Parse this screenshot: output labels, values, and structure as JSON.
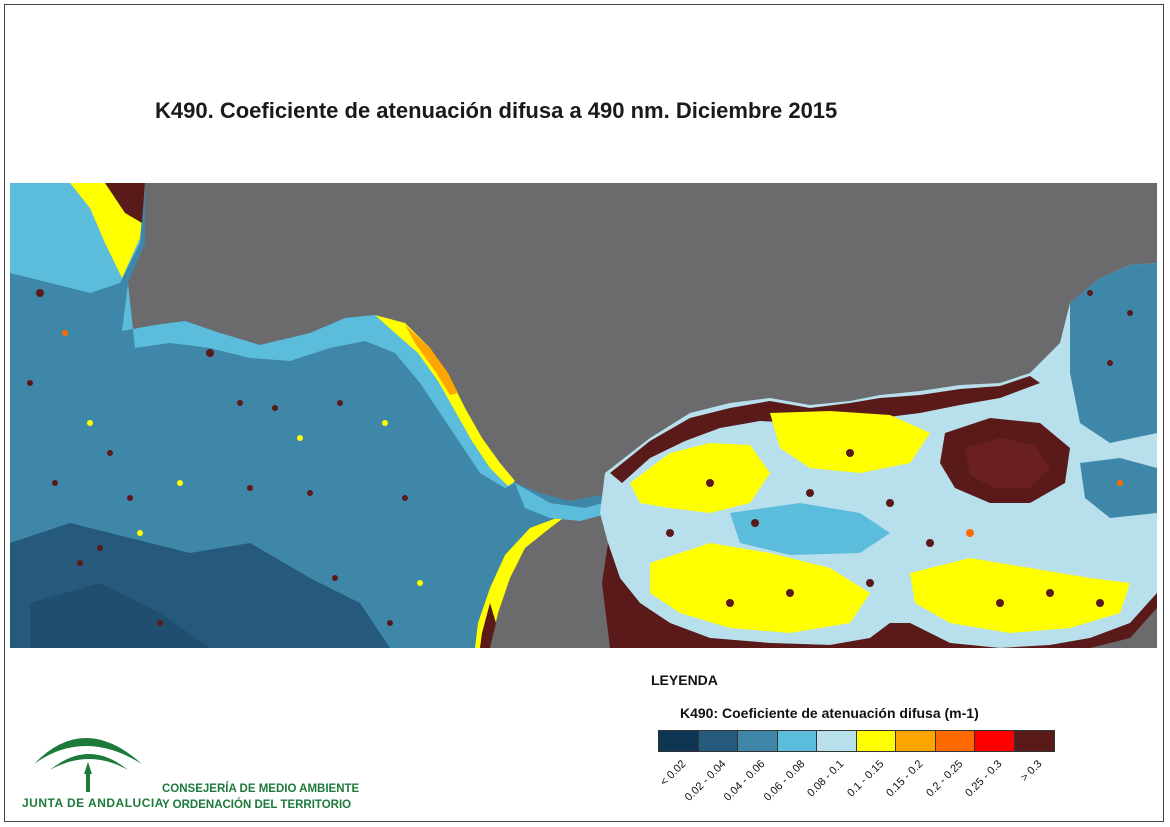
{
  "title": "K490. Coeficiente de atenuación difusa a 490 nm. Diciembre 2015",
  "legend": {
    "heading": "LEYENDA",
    "subtitle": "K490: Coeficiente de atenuación difusa (m-1)",
    "classes": [
      {
        "label": "< 0.02",
        "color": "#0e3552"
      },
      {
        "label": "0.02 - 0.04",
        "color": "#255a7c"
      },
      {
        "label": "0.04 - 0.06",
        "color": "#3f87a8"
      },
      {
        "label": "0.06 - 0.08",
        "color": "#5bbcdc"
      },
      {
        "label": "0.08 - 0.1",
        "color": "#b8e0ec"
      },
      {
        "label": "0.1 - 0.15",
        "color": "#ffff00"
      },
      {
        "label": "0.15 - 0.2",
        "color": "#ffa500"
      },
      {
        "label": "0.2 - 0.25",
        "color": "#ff6a00"
      },
      {
        "label": "0.25 - 0.3",
        "color": "#ff0000"
      },
      {
        "label": "> 0.3",
        "color": "#5a1a1a"
      }
    ]
  },
  "branding": {
    "logo_text": "JUNTA DE ANDALUCIA",
    "department_line1": "CONSEJERÍA DE MEDIO AMBIENTE",
    "department_line2": "Y ORDENACIÓN DEL TERRITORIO"
  },
  "map": {
    "land_color": "#6b6b6e",
    "sea_color": "#3f87a8"
  }
}
